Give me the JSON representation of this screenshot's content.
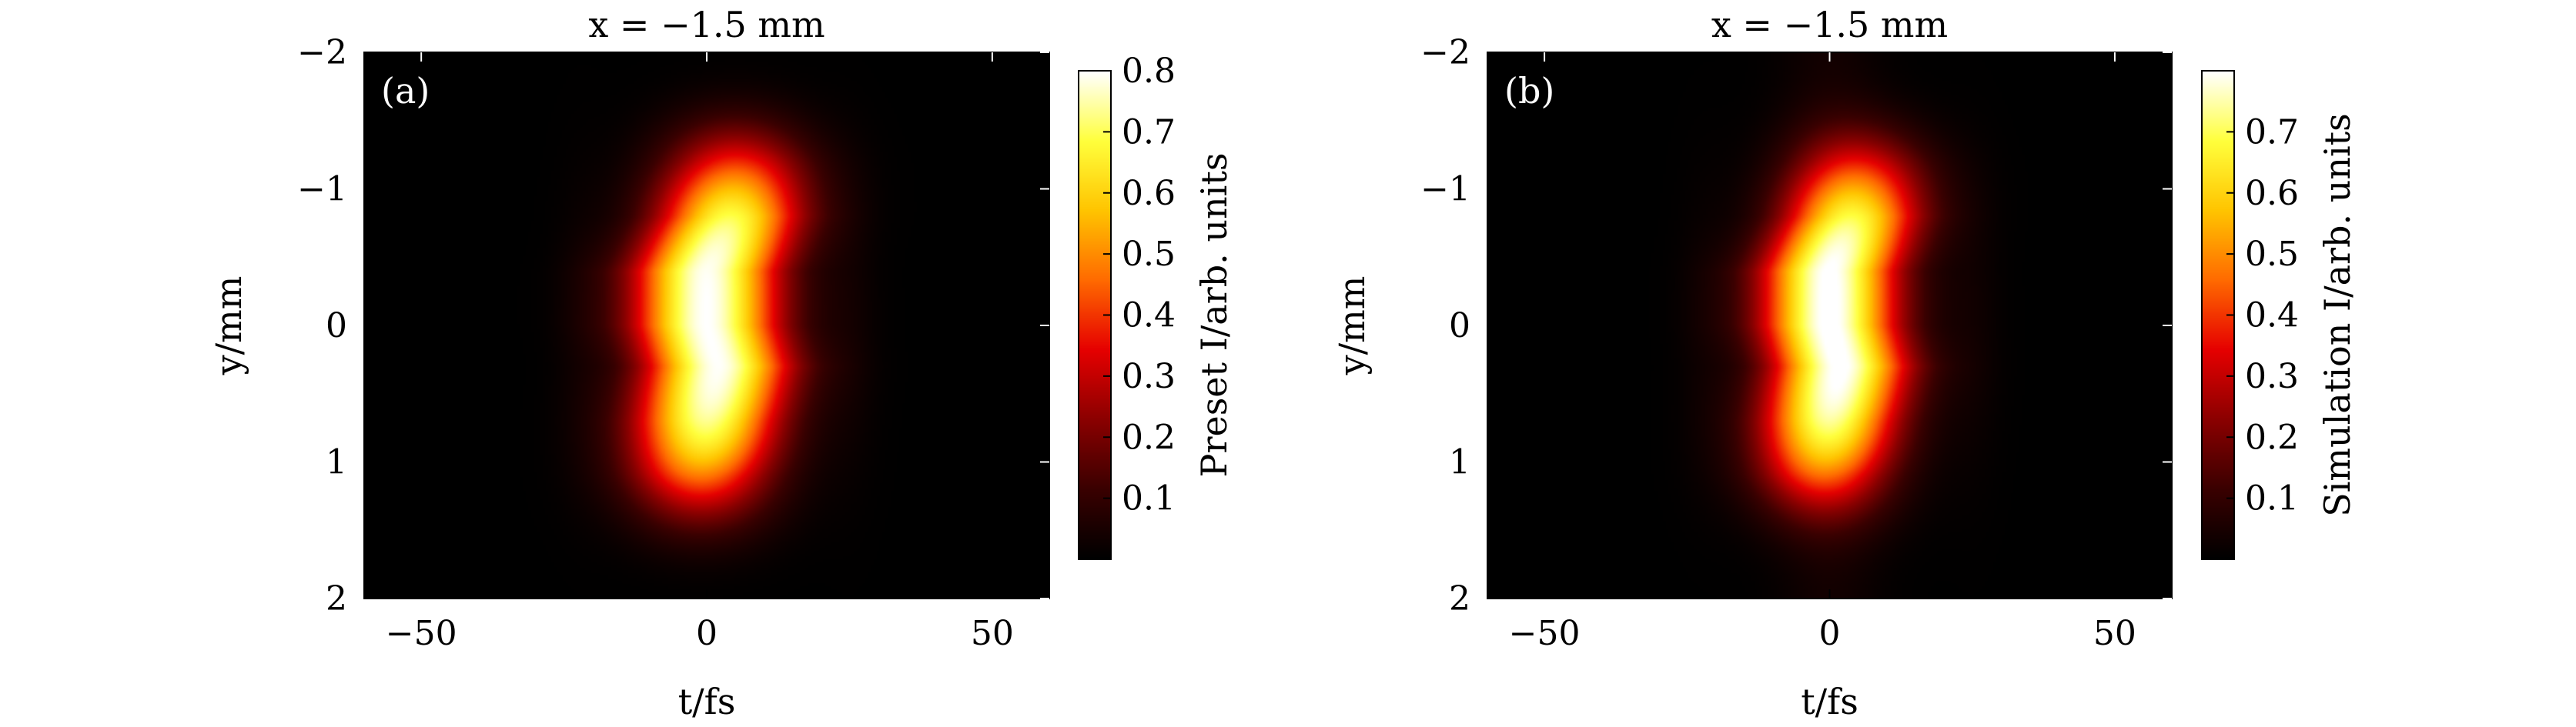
{
  "colors": {
    "colormap": [
      "#000000",
      "#3a0000",
      "#8b0000",
      "#e60000",
      "#ff6a00",
      "#ffc400",
      "#ffff3c",
      "#ffffff"
    ],
    "background": "#ffffff",
    "panel_letter": "#ffffff"
  },
  "chart_data": [
    {
      "type": "heatmap",
      "panel": "(a)",
      "title": "x = −1.5 mm",
      "xlabel": "t/fs",
      "ylabel": "y/mm",
      "xlim": [
        -60,
        60
      ],
      "ylim": [
        2,
        -2
      ],
      "x_ticks": [
        -50,
        0,
        50
      ],
      "x_tick_labels": [
        "−50",
        "0",
        "50"
      ],
      "y_ticks": [
        -2,
        -1,
        0,
        1,
        2
      ],
      "y_tick_labels": [
        "−2",
        "−1",
        "0",
        "1",
        "2"
      ],
      "colorbar": {
        "label": "Preset I/arb. units",
        "range": [
          0,
          0.8
        ],
        "ticks": [
          0.1,
          0.2,
          0.3,
          0.4,
          0.5,
          0.6,
          0.7,
          0.8
        ],
        "tick_labels": [
          "0.1",
          "0.2",
          "0.3",
          "0.4",
          "0.5",
          "0.6",
          "0.7",
          "0.8"
        ]
      },
      "peak_intensity": 0.8,
      "pulse_width_t_fs": 9,
      "extent_y_mm": 1.3,
      "centerline_t_fs_by_y_mm": [
        [
          -1.2,
          5
        ],
        [
          -0.8,
          4
        ],
        [
          -0.4,
          0
        ],
        [
          0,
          0
        ],
        [
          0.3,
          2
        ],
        [
          0.7,
          0
        ],
        [
          1.1,
          -1
        ]
      ],
      "background_vertical_band": false
    },
    {
      "type": "heatmap",
      "panel": "(b)",
      "title": "x = −1.5 mm",
      "xlabel": "t/fs",
      "ylabel": "y/mm",
      "xlim": [
        -60,
        60
      ],
      "ylim": [
        2,
        -2
      ],
      "x_ticks": [
        -50,
        0,
        50
      ],
      "x_tick_labels": [
        "−50",
        "0",
        "50"
      ],
      "y_ticks": [
        -2,
        -1,
        0,
        1,
        2
      ],
      "y_tick_labels": [
        "−2",
        "−1",
        "0",
        "1",
        "2"
      ],
      "colorbar": {
        "label": "Simulation I/arb. units",
        "range": [
          0,
          0.8
        ],
        "ticks": [
          0.1,
          0.2,
          0.3,
          0.4,
          0.5,
          0.6,
          0.7
        ],
        "tick_labels": [
          "0.1",
          "0.2",
          "0.3",
          "0.4",
          "0.5",
          "0.6",
          "0.7"
        ]
      },
      "peak_intensity": 0.78,
      "pulse_width_t_fs": 8.5,
      "extent_y_mm": 1.25,
      "centerline_t_fs_by_y_mm": [
        [
          -1.2,
          5
        ],
        [
          -0.8,
          4
        ],
        [
          -0.4,
          0
        ],
        [
          0,
          0
        ],
        [
          0.3,
          2
        ],
        [
          0.7,
          0
        ],
        [
          1.1,
          -1
        ]
      ],
      "background_vertical_band": true
    }
  ]
}
